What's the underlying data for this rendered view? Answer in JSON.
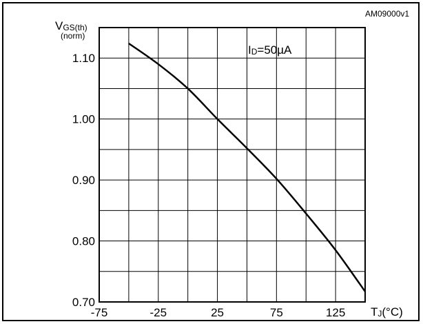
{
  "figure_id": "AM09000v1",
  "chart_data": {
    "type": "line",
    "ylabel_main": "V",
    "ylabel_sub": "GS(th)",
    "ylabel_note": "(norm)",
    "xlabel_main": "T",
    "xlabel_sub": "J",
    "xlabel_unit": "(°C)",
    "annotation_main": "I",
    "annotation_sub": "D",
    "annotation_value": "=50µA",
    "xlim": [
      -75,
      150
    ],
    "ylim": [
      0.7,
      1.15
    ],
    "x_ticks": [
      -75,
      -25,
      25,
      75,
      125
    ],
    "x_tick_labels": [
      "-75",
      "-25",
      "25",
      "75",
      "125"
    ],
    "y_ticks": [
      0.7,
      0.8,
      0.9,
      1.0,
      1.1
    ],
    "y_tick_labels": [
      "0.70",
      "0.80",
      "0.90",
      "1.00",
      "1.10"
    ],
    "grid": true,
    "series": [
      {
        "x": [
          -50,
          -25,
          0,
          25,
          50,
          75,
          100,
          125,
          150
        ],
        "y": [
          1.124,
          1.09,
          1.05,
          1.0,
          0.952,
          0.902,
          0.845,
          0.785,
          0.717
        ]
      }
    ]
  }
}
